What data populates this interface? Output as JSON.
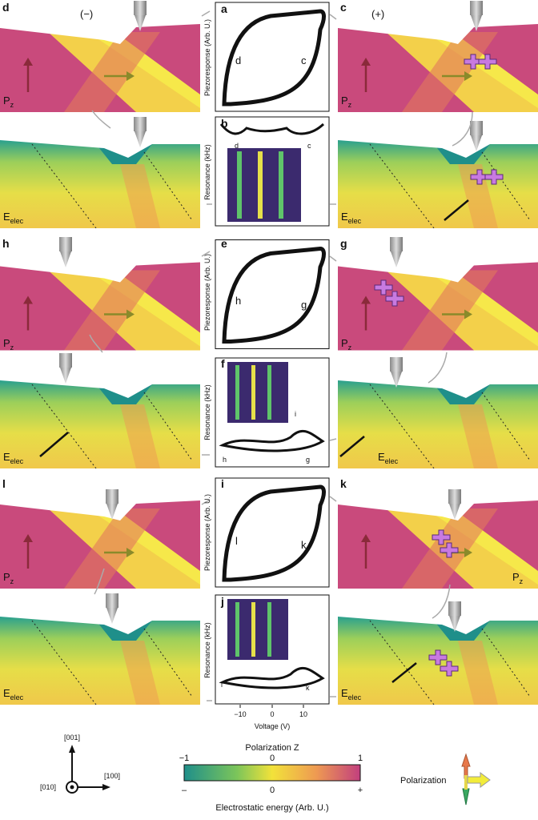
{
  "left": [
    {
      "label": "d",
      "sign": "(−)",
      "pz": {
        "main": "P",
        "sub": "z"
      },
      "e": {
        "main": "E",
        "sub": "elec"
      }
    },
    {
      "label": "h",
      "pz": {
        "main": "P",
        "sub": "z"
      },
      "e": {
        "main": "E",
        "sub": "elec"
      }
    },
    {
      "label": "l",
      "pz": {
        "main": "P",
        "sub": "z"
      },
      "e": {
        "main": "E",
        "sub": "elec"
      }
    }
  ],
  "right": [
    {
      "label": "c",
      "sign": "(+)",
      "pz": {
        "main": "P",
        "sub": "z"
      },
      "e": {
        "main": "E",
        "sub": "elec"
      }
    },
    {
      "label": "g",
      "pz": {
        "main": "P",
        "sub": "z"
      },
      "e": {
        "main": "E",
        "sub": "elec"
      }
    },
    {
      "label": "k",
      "pz": {
        "main": "P",
        "sub": "z"
      },
      "e": {
        "main": "E",
        "sub": "elec"
      }
    }
  ],
  "middle": [
    {
      "loop_label": "a",
      "resonance_label": "b",
      "curve_labels": [
        "d",
        "c"
      ],
      "resonance_curve_labels": [
        "d",
        "c"
      ]
    },
    {
      "loop_label": "e",
      "resonance_label": "f",
      "curve_labels": [
        "h",
        "g"
      ],
      "resonance_curve_labels": [
        "i",
        "h",
        "g"
      ]
    },
    {
      "loop_label": "i",
      "resonance_label": "j",
      "curve_labels": [
        "l",
        "k"
      ],
      "resonance_curve_labels": [
        "l",
        "k"
      ]
    }
  ],
  "y_label_loop": "Piezoresponse (Arb. U.)",
  "y_label_resonance": "Resonance (kHz)",
  "x_axis": {
    "ticks": [
      "−10",
      "0",
      "10"
    ],
    "label": "Voltage (V)"
  },
  "legend": {
    "axes": [
      "[001]",
      "[100]",
      "[010]"
    ],
    "colorbar_title": "Polarization Z",
    "colorbar_ticks": [
      "−1",
      "0",
      "1"
    ],
    "energy_ticks": [
      "–",
      "0",
      "+"
    ],
    "energy_label": "Electrostatic energy (Arb. U.)",
    "polarization": "Polarization"
  }
}
